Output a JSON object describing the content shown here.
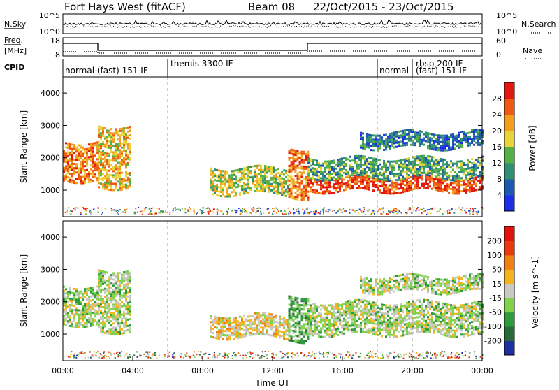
{
  "header": {
    "station": "Fort Hays West (fitACF)",
    "beam": "Beam 08",
    "date_range": "22/Oct/2015 - 23/Oct/2015"
  },
  "noise_panel": {
    "left_label": "N.Sky",
    "left_ticks": [
      "10^5",
      "10^0"
    ],
    "right_label": "N.Search",
    "right_ticks": [
      "10^5",
      "10^0"
    ]
  },
  "freq_panel": {
    "left_label_line1": "Freq.",
    "left_label_line2": "[MHz]",
    "left_ticks": [
      "18",
      "8"
    ],
    "right_label": "Nave",
    "right_ticks": [
      "60",
      "0"
    ]
  },
  "cpid": {
    "label": "CPID",
    "segments": [
      {
        "start": 0,
        "text": "normal (fast) 151 IF"
      },
      {
        "start": 6.0,
        "text": "themis 3300 IF"
      },
      {
        "start": 18.0,
        "text": "normal"
      },
      {
        "start": 20.0,
        "text": "rbsp 200 IF"
      },
      {
        "start": 20.0,
        "text": "(fast) 151 IF"
      }
    ]
  },
  "time_axis": {
    "label": "Time UT",
    "ticks": [
      "00:00",
      "04:00",
      "08:00",
      "12:00",
      "16:00",
      "20:00",
      "00:00"
    ]
  },
  "chart_data": [
    {
      "type": "heatmap",
      "quantity": "Power",
      "xlabel": "Time UT",
      "ylabel": "Slant Range [km]",
      "xlim": [
        0,
        24
      ],
      "ylim": [
        180,
        4500
      ],
      "yticks": [
        1000,
        2000,
        3000,
        4000
      ],
      "colorbar": {
        "label": "Power [dB]",
        "ticks": [
          "4",
          "8",
          "12",
          "16",
          "20",
          "24",
          "28"
        ],
        "colors": [
          "#1e2ee6",
          "#1f58b0",
          "#2f8f73",
          "#55b04a",
          "#e8d43a",
          "#f39d1f",
          "#ef5a12",
          "#e2180f"
        ]
      },
      "echo_regions": [
        {
          "t0": 0.0,
          "t1": 2.0,
          "r_low": 1300,
          "r_high": 2500,
          "level": 6
        },
        {
          "t0": 2.0,
          "t1": 3.9,
          "r_low": 1100,
          "r_high": 3000,
          "level": 5
        },
        {
          "t0": 8.4,
          "t1": 12.9,
          "r_low": 900,
          "r_high": 1700,
          "level": 4
        },
        {
          "t0": 12.9,
          "t1": 14.0,
          "r_low": 800,
          "r_high": 2300,
          "level": 6
        },
        {
          "t0": 14.0,
          "t1": 24.0,
          "r_low": 1000,
          "r_high": 1400,
          "level": 7
        },
        {
          "t0": 14.0,
          "t1": 24.0,
          "r_low": 1400,
          "r_high": 2000,
          "level": 3
        },
        {
          "t0": 17.0,
          "t1": 24.0,
          "r_low": 2300,
          "r_high": 2800,
          "level": 2
        }
      ]
    },
    {
      "type": "heatmap",
      "quantity": "Velocity",
      "xlabel": "Time UT",
      "ylabel": "Slant Range [km]",
      "xlim": [
        0,
        24
      ],
      "ylim": [
        180,
        4500
      ],
      "yticks": [
        1000,
        2000,
        3000,
        4000
      ],
      "colorbar": {
        "label": "Velocity [m s^-1]",
        "ticks": [
          "200",
          "100",
          "50",
          "15",
          "-15",
          "-50",
          "-100",
          "-200"
        ],
        "colors": [
          "#1f2f9f",
          "#2a6a3a",
          "#2f9b3e",
          "#7fd24a",
          "#c9c9c3",
          "#f4b321",
          "#f07f14",
          "#e8380f",
          "#e0120f"
        ]
      },
      "echo_regions": [
        {
          "t0": 0.0,
          "t1": 2.0,
          "r_low": 1300,
          "r_high": 2500,
          "level": 4
        },
        {
          "t0": 2.0,
          "t1": 3.9,
          "r_low": 1100,
          "r_high": 3000,
          "level": 4
        },
        {
          "t0": 8.4,
          "t1": 12.9,
          "r_low": 900,
          "r_high": 1600,
          "level": 5
        },
        {
          "t0": 12.9,
          "t1": 14.0,
          "r_low": 800,
          "r_high": 2200,
          "level": 3
        },
        {
          "t0": 14.0,
          "t1": 24.0,
          "r_low": 1000,
          "r_high": 2000,
          "level": 4
        },
        {
          "t0": 17.0,
          "t1": 24.0,
          "r_low": 2300,
          "r_high": 2800,
          "level": 4
        }
      ]
    }
  ]
}
